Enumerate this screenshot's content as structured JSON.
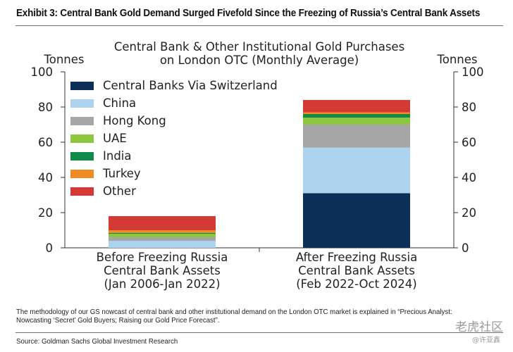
{
  "exhibit": {
    "title": "Exhibit 3: Central Bank Gold Demand Surged Fivefold Since the Freezing of Russia’s Central Bank Assets",
    "footnote": "The methodology of our GS nowcast of central bank and other institutional demand on the London OTC market is explained in “Precious Analyst: Nowcasting ‘Secret’ Gold Buyers; Raising our Gold Price Forecast”.",
    "source": "Source: Goldman Sachs Global Investment Research"
  },
  "watermark": {
    "logo_text": "老虎社区",
    "handle": "@许亚鑫"
  },
  "chart_data": {
    "type": "bar",
    "stacked": true,
    "title": [
      "Central Bank & Other Institutional Gold Purchases",
      "on London OTC (Monthly Average)"
    ],
    "ylabel_left": "Tonnes",
    "ylabel_right": "Tonnes",
    "ylim": [
      0,
      100
    ],
    "yticks": [
      0,
      20,
      40,
      60,
      80,
      100
    ],
    "grid": false,
    "legend_position": "top-left",
    "categories": [
      [
        "Before Freezing Russia",
        "Central Bank Assets",
        "(Jan 2006-Jan 2022)"
      ],
      [
        "After Freezing Russia",
        "Central Bank Assets",
        "(Feb 2022-Oct 2024)"
      ]
    ],
    "series": [
      {
        "name": "Central Banks Via Switzerland",
        "color": "#0b2f56",
        "values": [
          0,
          31
        ]
      },
      {
        "name": "China",
        "color": "#add3ee",
        "values": [
          4,
          26
        ]
      },
      {
        "name": "Hong Kong",
        "color": "#a6a6a6",
        "values": [
          2,
          13
        ]
      },
      {
        "name": "UAE",
        "color": "#8dc63f",
        "values": [
          2,
          4
        ]
      },
      {
        "name": "India",
        "color": "#108a49",
        "values": [
          0.5,
          2
        ]
      },
      {
        "name": "Turkey",
        "color": "#f08a24",
        "values": [
          1.5,
          1
        ]
      },
      {
        "name": "Other",
        "color": "#d33a35",
        "values": [
          8,
          7
        ]
      }
    ]
  }
}
